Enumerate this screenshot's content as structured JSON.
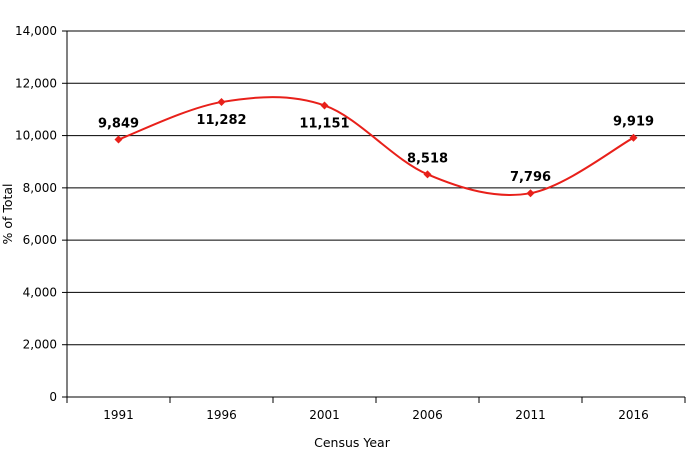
{
  "chart_data": {
    "type": "line",
    "title": "",
    "xlabel": "Census Year",
    "ylabel": "% of Total",
    "categories": [
      "1991",
      "1996",
      "2001",
      "2006",
      "2011",
      "2016"
    ],
    "series": [
      {
        "values": [
          9849,
          11282,
          11151,
          8518,
          7796,
          9919
        ],
        "color": "#e8201a",
        "marker": "diamond",
        "smooth": true
      }
    ],
    "data_labels": [
      "9,849",
      "11,282",
      "11,151",
      "8,518",
      "7,796",
      "9,919"
    ],
    "ylim": [
      0,
      14000
    ],
    "yticks": [
      0,
      2000,
      4000,
      6000,
      8000,
      10000,
      12000,
      14000
    ],
    "ytick_labels": [
      "0",
      "2,000",
      "4,000",
      "6,000",
      "8,000",
      "10,000",
      "12,000",
      "14,000"
    ],
    "grid": true,
    "legend": "none"
  }
}
